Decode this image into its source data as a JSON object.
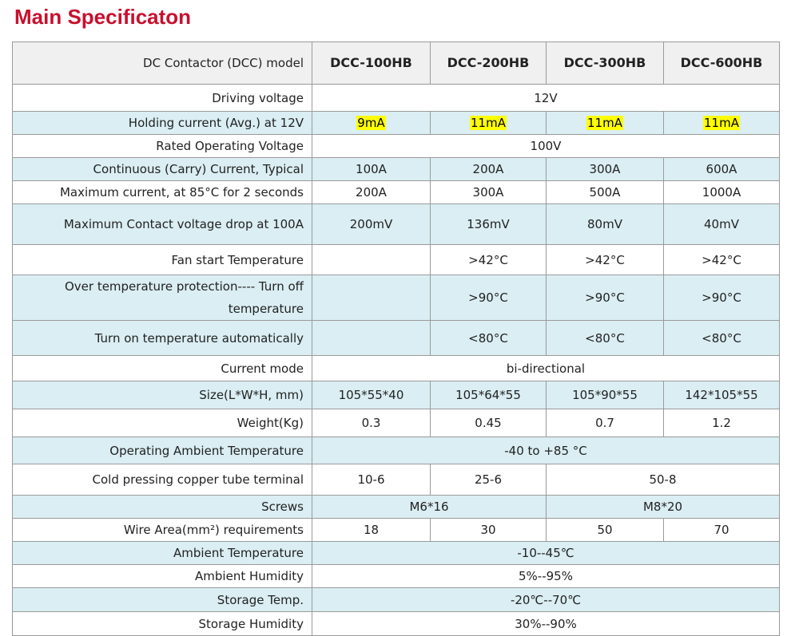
{
  "title": "Main Specificaton",
  "table": {
    "header": [
      "DC Contactor (DCC) model",
      "DCC-100HB",
      "DCC-200HB",
      "DCC-300HB",
      "DCC-600HB"
    ],
    "rows": [
      {
        "label": "Driving voltage",
        "cells": [
          "12V"
        ]
      },
      {
        "label": "Holding current (Avg.) at 12V",
        "cells": [
          "9mA",
          "11mA",
          "11mA",
          "11mA"
        ],
        "highlight": "#ffff00"
      },
      {
        "label": "Rated Operating Voltage",
        "cells": [
          "100V"
        ]
      },
      {
        "label": "Continuous (Carry) Current, Typical",
        "cells": [
          "100A",
          "200A",
          "300A",
          "600A"
        ]
      },
      {
        "label": "Maximum current, at 85°C for 2 seconds",
        "cells": [
          "200A",
          "300A",
          "500A",
          "1000A"
        ]
      },
      {
        "label": "Maximum Contact voltage drop at 100A",
        "cells": [
          "200mV",
          "136mV",
          "80mV",
          "40mV"
        ]
      },
      {
        "label": "Fan start Temperature",
        "cells": [
          null,
          ">42°C",
          ">42°C",
          ">42°C"
        ]
      },
      {
        "label": "Over temperature protection---- Turn off temperature",
        "cells": [
          null,
          ">90°C",
          ">90°C",
          ">90°C"
        ]
      },
      {
        "label": "Turn on temperature automatically",
        "cells": [
          null,
          "<80°C",
          "<80°C",
          "<80°C"
        ]
      },
      {
        "label": "Current mode",
        "cells": [
          "bi-directional"
        ]
      },
      {
        "label": "Size(L*W*H, mm)",
        "cells": [
          "105*55*40",
          "105*64*55",
          "105*90*55",
          "142*105*55"
        ]
      },
      {
        "label": "Weight(Kg)",
        "cells": [
          "0.3",
          "0.45",
          "0.7",
          "1.2"
        ]
      },
      {
        "label": "Operating Ambient Temperature",
        "cells": [
          "-40 to +85 °C"
        ]
      },
      {
        "label": "Cold pressing copper tube terminal",
        "cells": [
          "10-6",
          "25-6",
          "50-8"
        ]
      },
      {
        "label": "Screws",
        "cells": [
          "M6*16",
          "M8*20"
        ]
      },
      {
        "label": "Wire Area(mm²) requirements",
        "cells": [
          "18",
          "30",
          "50",
          "70"
        ]
      },
      {
        "label": "Ambient Temperature",
        "cells": [
          "-10--45℃"
        ]
      },
      {
        "label": "Ambient Humidity",
        "cells": [
          "5%--95%"
        ]
      },
      {
        "label": "Storage Temp.",
        "cells": [
          "-20℃--70℃"
        ]
      },
      {
        "label": "Storage Humidity",
        "cells": [
          "30%--90%"
        ]
      }
    ]
  }
}
